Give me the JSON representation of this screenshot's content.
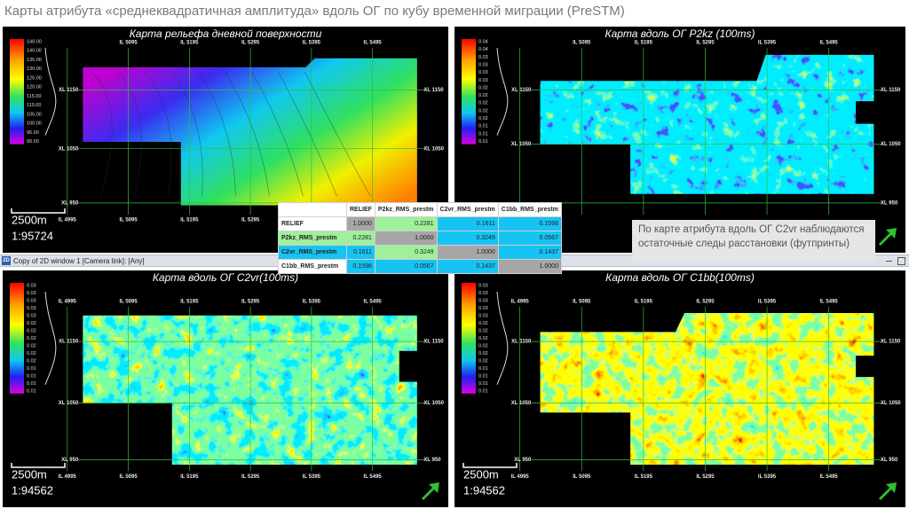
{
  "title": "Карты атрибута «среднеквадратичная амплитуда» вдоль ОГ по кубу временной миграции (PreSTM)",
  "panels": [
    {
      "title": "Карта рельефа дневной поверхности",
      "colorbar_ticks": [
        "146.00",
        "140.00",
        "135.00",
        "130.00",
        "125.00",
        "120.00",
        "115.00",
        "110.00",
        "105.00",
        "100.00",
        "95.00",
        "90.00"
      ],
      "il_top": [
        "IL 5095",
        "IL 5195",
        "IL 5295",
        "IL 5395",
        "IL 5495"
      ],
      "il_bottom": [
        "IL 4995",
        "IL 5095",
        "IL 5195",
        "IL 5295",
        "IL 5395",
        "IL 5495"
      ],
      "xl_left": [
        "XL 1150",
        "XL 1050",
        "XL 950"
      ],
      "xl_right": [
        "XL 1150",
        "XL 1050"
      ],
      "scale": "2500m",
      "ratio": "1:95724"
    },
    {
      "title": "Карта вдоль ОГ  P2kz (100ms)",
      "colorbar_ticks": [
        "0.04",
        "0.04",
        "0.03",
        "0.03",
        "0.03",
        "0.03",
        "0.02",
        "0.02",
        "0.02",
        "0.02",
        "0.02",
        "0.01",
        "0.01",
        "0.01"
      ],
      "il_top": [
        "IL 5095",
        "IL 5195",
        "IL 5295",
        "IL 5395",
        "IL 5495"
      ],
      "xl_left": [
        "XL 1150",
        "XL 1050"
      ],
      "xl_right": [
        "XL 1150",
        "XL 1050",
        "XL 950"
      ]
    },
    {
      "title": "Карта вдоль ОГ  C2vr(100ms)",
      "colorbar_ticks": [
        "0.03",
        "0.03",
        "0.03",
        "0.03",
        "0.03",
        "0.02",
        "0.02",
        "0.02",
        "0.02",
        "0.02",
        "0.02",
        "0.01",
        "0.01",
        "0.01",
        "0.01"
      ],
      "il_top": [
        "IL 4995",
        "IL 5095",
        "IL 5195",
        "IL 5295",
        "IL 5395",
        "IL 5495"
      ],
      "il_bottom": [
        "IL 4995",
        "IL 5095",
        "IL 5195",
        "IL 5295",
        "IL 5395",
        "IL 5495"
      ],
      "xl_left": [
        "XL 1150",
        "XL 1050",
        "XL 950"
      ],
      "xl_right": [
        "XL 1150",
        "XL 1050",
        "XL 950"
      ],
      "scale": "2500m",
      "ratio": "1:94562"
    },
    {
      "title": "Карта вдоль ОГ  C1bb(100ms)",
      "colorbar_ticks": [
        "0.03",
        "0.03",
        "0.03",
        "0.03",
        "0.03",
        "0.02",
        "0.02",
        "0.02",
        "0.02",
        "0.02",
        "0.02",
        "0.01",
        "0.01",
        "0.01",
        "0.01"
      ],
      "il_top": [
        "IL 4995",
        "IL 5095",
        "IL 5195",
        "IL 5295",
        "IL 5395",
        "IL 5495"
      ],
      "il_bottom": [
        "IL 4995",
        "IL 5095",
        "IL 5195",
        "IL 5295",
        "IL 5395",
        "IL 5495"
      ],
      "xl_left": [
        "XL 1150",
        "XL 1050",
        "XL 950"
      ],
      "xl_right": [
        "XL 1150",
        "XL 1050",
        "XL 950"
      ],
      "scale": "2500m",
      "ratio": "1:94562"
    }
  ],
  "window_bar": {
    "icon": "2D",
    "text": "Copy of 2D window 1 [Camera link]: [Any]"
  },
  "table": {
    "header": [
      "RELIEF",
      "P2kz_RMS_prestm",
      "C2vr_RMS_prestm",
      "C1bb_RMS_prestm"
    ],
    "rows": [
      {
        "label": "RELIEF",
        "cells": [
          "1.0000",
          "0.2281",
          "0.1611",
          "0.1598"
        ]
      },
      {
        "label": "P2kz_RMS_prestm",
        "cells": [
          "0.2281",
          "1.0000",
          "0.3249",
          "0.0567"
        ]
      },
      {
        "label": "C2vr_RMS_prestm",
        "cells": [
          "0.1611",
          "0.3249",
          "1.0000",
          "0.1437"
        ]
      },
      {
        "label": "C1bb_RMS_prestm",
        "cells": [
          "0.1598",
          "0.0567",
          "0.1437",
          "1.0000"
        ]
      }
    ],
    "cell_colors": [
      [
        "#ffffff",
        "#a6a6a6",
        "#9ef09a",
        "#17c3f2",
        "#17c3f2"
      ],
      [
        "#9ef09a",
        "#9ef09a",
        "#a6a6a6",
        "#17c3f2",
        "#17c3f2"
      ],
      [
        "#17c3f2",
        "#17c3f2",
        "#9ef09a",
        "#a6a6a6",
        "#17c3f2"
      ],
      [
        "#ffffff",
        "#17c3f2",
        "#17c3f2",
        "#17c3f2",
        "#a6a6a6"
      ]
    ]
  },
  "note": "По карте атрибута вдоль ОГ C2vr наблюдаются остаточные следы расстановки (футпринты)"
}
